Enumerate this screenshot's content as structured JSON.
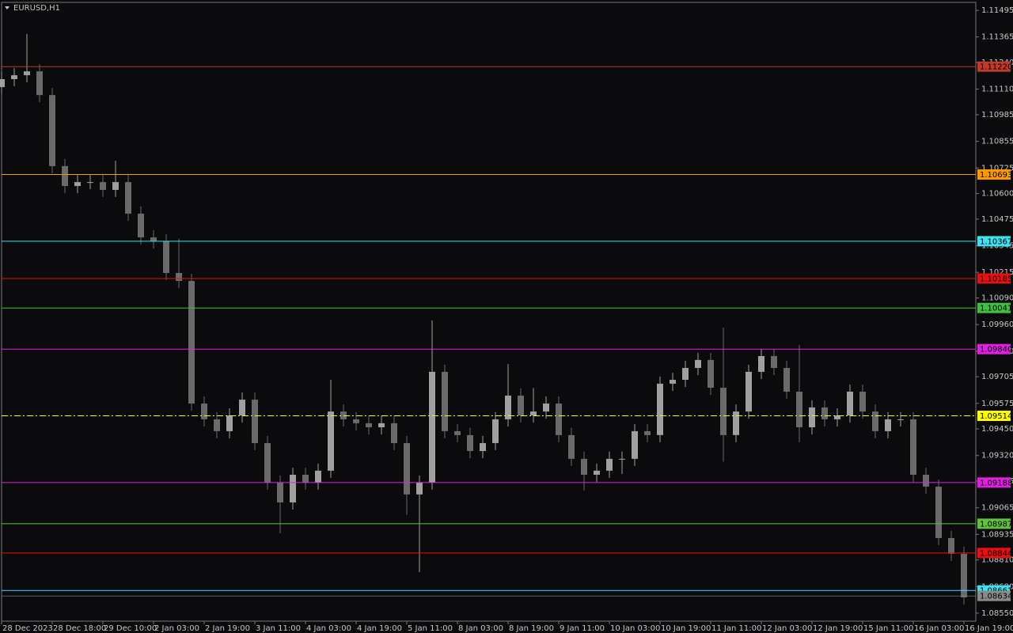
{
  "chart_data": {
    "type": "candlestick",
    "title": "EURUSD,H1",
    "categories": [
      "28 Dec 2023",
      null,
      null,
      null,
      "28 Dec 18:00",
      null,
      null,
      null,
      "29 Dec 10:00",
      null,
      null,
      null,
      "2 Jan 03:00",
      null,
      null,
      null,
      "2 Jan 19:00",
      null,
      null,
      null,
      "3 Jan 11:00",
      null,
      null,
      null,
      "4 Jan 03:00",
      null,
      null,
      null,
      "4 Jan 19:00",
      null,
      null,
      null,
      "5 Jan 11:00",
      null,
      null,
      null,
      "8 Jan 03:00",
      null,
      null,
      null,
      "8 Jan 19:00",
      null,
      null,
      null,
      "9 Jan 11:00",
      null,
      null,
      null,
      "10 Jan 03:00",
      null,
      null,
      null,
      "10 Jan 19:00",
      null,
      null,
      null,
      "11 Jan 11:00",
      null,
      null,
      null,
      "12 Jan 03:00",
      null,
      null,
      null,
      "12 Jan 19:00",
      null,
      null,
      null,
      "15 Jan 11:00",
      null,
      null,
      null,
      "16 Jan 03:00",
      null,
      null,
      null,
      "16 Jan 19:00"
    ],
    "open": [
      1.1112,
      1.11159,
      1.11178,
      1.11197,
      1.11081,
      1.10734,
      1.10637,
      1.10656,
      1.10656,
      1.10618,
      1.10656,
      1.10502,
      1.10386,
      1.10366,
      1.10212,
      1.10173,
      1.09574,
      1.09497,
      1.09439,
      1.09516,
      1.09593,
      1.09381,
      1.09188,
      1.09091,
      1.09226,
      1.09188,
      1.09246,
      1.09535,
      1.09497,
      1.09478,
      1.09458,
      1.09478,
      1.09381,
      1.0913,
      1.09188,
      1.09729,
      1.09439,
      1.0942,
      1.09342,
      1.09381,
      1.09497,
      1.09613,
      1.09516,
      1.09535,
      1.09574,
      1.0942,
      1.09304,
      1.09226,
      1.09246,
      1.09304,
      1.09304,
      1.09439,
      1.0942,
      1.09671,
      1.0969,
      1.09748,
      1.09787,
      1.09651,
      1.0942,
      1.09535,
      1.09729,
      1.09806,
      1.09748,
      1.09632,
      1.09458,
      1.09555,
      1.09497,
      1.09516,
      1.09632,
      1.09535,
      1.09439,
      1.09497,
      1.09497,
      1.09226,
      1.09168,
      1.08917,
      1.0884
    ],
    "high": [
      1.11194,
      1.11213,
      1.1138,
      1.11232,
      1.11116,
      1.10769,
      1.10691,
      1.10691,
      1.10691,
      1.1076,
      1.10691,
      1.10537,
      1.10421,
      1.10401,
      1.1038,
      1.10208,
      1.09609,
      1.09532,
      1.09551,
      1.09628,
      1.09628,
      1.09416,
      1.09223,
      1.09261,
      1.09261,
      1.09281,
      1.0969,
      1.0957,
      1.09532,
      1.09513,
      1.09513,
      1.09513,
      1.09416,
      1.09223,
      1.0998,
      1.09764,
      1.09474,
      1.09455,
      1.09416,
      1.09532,
      1.09767,
      1.09648,
      1.0965,
      1.09609,
      1.09609,
      1.09455,
      1.09339,
      1.09281,
      1.09339,
      1.09339,
      1.09474,
      1.09474,
      1.09706,
      1.09725,
      1.09783,
      1.09822,
      1.09822,
      1.09945,
      1.0957,
      1.09764,
      1.09841,
      1.09841,
      1.09783,
      1.0986,
      1.0959,
      1.0959,
      1.09551,
      1.09667,
      1.09667,
      1.0957,
      1.09532,
      1.09532,
      1.09532,
      1.09261,
      1.09203,
      1.08952,
      1.08875
    ],
    "low": [
      1.11085,
      1.11124,
      1.11143,
      1.11046,
      1.10699,
      1.10602,
      1.10602,
      1.10621,
      1.10583,
      1.10583,
      1.10467,
      1.10351,
      1.10331,
      1.10177,
      1.10138,
      1.09539,
      1.09462,
      1.09404,
      1.09404,
      1.09481,
      1.09346,
      1.09153,
      1.0894,
      1.09056,
      1.09153,
      1.09153,
      1.09211,
      1.09462,
      1.09443,
      1.09423,
      1.09423,
      1.09346,
      1.0903,
      1.0875,
      1.09153,
      1.09404,
      1.09385,
      1.09307,
      1.09307,
      1.09346,
      1.09462,
      1.09481,
      1.09481,
      1.095,
      1.09385,
      1.09269,
      1.0915,
      1.09191,
      1.09211,
      1.0923,
      1.09269,
      1.09385,
      1.09385,
      1.09636,
      1.09655,
      1.09713,
      1.09616,
      1.0929,
      1.09385,
      1.095,
      1.09694,
      1.09713,
      1.09597,
      1.09385,
      1.09423,
      1.09462,
      1.09462,
      1.09481,
      1.095,
      1.09404,
      1.09404,
      1.09462,
      1.09191,
      1.09133,
      1.08882,
      1.08805,
      1.08592
    ],
    "close": [
      1.11159,
      1.11178,
      1.11197,
      1.11081,
      1.10734,
      1.10637,
      1.10656,
      1.10656,
      1.10618,
      1.10656,
      1.10502,
      1.10386,
      1.10366,
      1.10212,
      1.10173,
      1.09574,
      1.09497,
      1.09439,
      1.09516,
      1.09593,
      1.09381,
      1.09188,
      1.09091,
      1.09226,
      1.09188,
      1.09246,
      1.09535,
      1.09497,
      1.09478,
      1.09458,
      1.09478,
      1.09381,
      1.0913,
      1.09188,
      1.09729,
      1.09439,
      1.0942,
      1.09342,
      1.09381,
      1.09497,
      1.09613,
      1.09516,
      1.09535,
      1.09574,
      1.0942,
      1.09304,
      1.09226,
      1.09246,
      1.09304,
      1.09304,
      1.09439,
      1.0942,
      1.09671,
      1.0969,
      1.09748,
      1.09787,
      1.09651,
      1.0942,
      1.09535,
      1.09729,
      1.09806,
      1.09748,
      1.09632,
      1.09458,
      1.09555,
      1.09497,
      1.09516,
      1.09632,
      1.09535,
      1.09439,
      1.09497,
      1.09497,
      1.09226,
      1.09168,
      1.08917,
      1.0884,
      1.08627
    ],
    "up_color": "#a0a0a0",
    "down_color": "#6a6a6a",
    "ylim": [
      1.08511,
      1.11534
    ],
    "yticks": [
      1.11495,
      1.11365,
      {
        "value": 1.1124,
        "label": "1.11240"
      },
      {
        "value": 1.1111,
        "label": "1.11110"
      },
      1.10985,
      1.10855,
      1.10725,
      {
        "value": 1.106,
        "label": "1.10600"
      },
      1.10475,
      1.10345,
      1.10215,
      {
        "value": 1.1009,
        "label": "1.10090"
      },
      {
        "value": 1.0996,
        "label": "1.09960"
      },
      {
        "value": 1.0983,
        "label": "1.09830"
      },
      1.09705,
      1.09575,
      {
        "value": 1.0945,
        "label": "1.09450"
      },
      {
        "value": 1.0932,
        "label": "1.09320"
      },
      1.09195,
      1.09065,
      1.08935,
      {
        "value": 1.0881,
        "label": "1.08810"
      },
      {
        "value": 1.0868,
        "label": "1.08680"
      },
      {
        "value": 1.0855,
        "label": "1.08550"
      }
    ],
    "levels": [
      {
        "value": 1.1122,
        "label": "1.11220",
        "color": "#c0392b",
        "style": "solid"
      },
      {
        "value": 1.10693,
        "color": "#ff9900",
        "style": "solid"
      },
      {
        "value": 1.10367,
        "color": "#40e0f0",
        "style": "solid"
      },
      {
        "value": 1.10185,
        "color": "#e81010",
        "style": "solid"
      },
      {
        "value": 1.10041,
        "color": "#40c040",
        "style": "solid"
      },
      {
        "value": 1.0984,
        "label": "1.09840",
        "color": "#e020e0",
        "style": "solid"
      },
      {
        "value": 1.09514,
        "color": "#ffff00",
        "style": "dashdot"
      },
      {
        "value": 1.09188,
        "color": "#e020e0",
        "style": "solid"
      },
      {
        "value": 1.08987,
        "color": "#60c040",
        "style": "solid"
      },
      {
        "value": 1.08844,
        "color": "#e81010",
        "style": "solid"
      },
      {
        "value": 1.08661,
        "color": "#40e0f0",
        "style": "solid"
      }
    ],
    "bid": {
      "value": 1.08634,
      "color": "#8a8a8a"
    }
  }
}
